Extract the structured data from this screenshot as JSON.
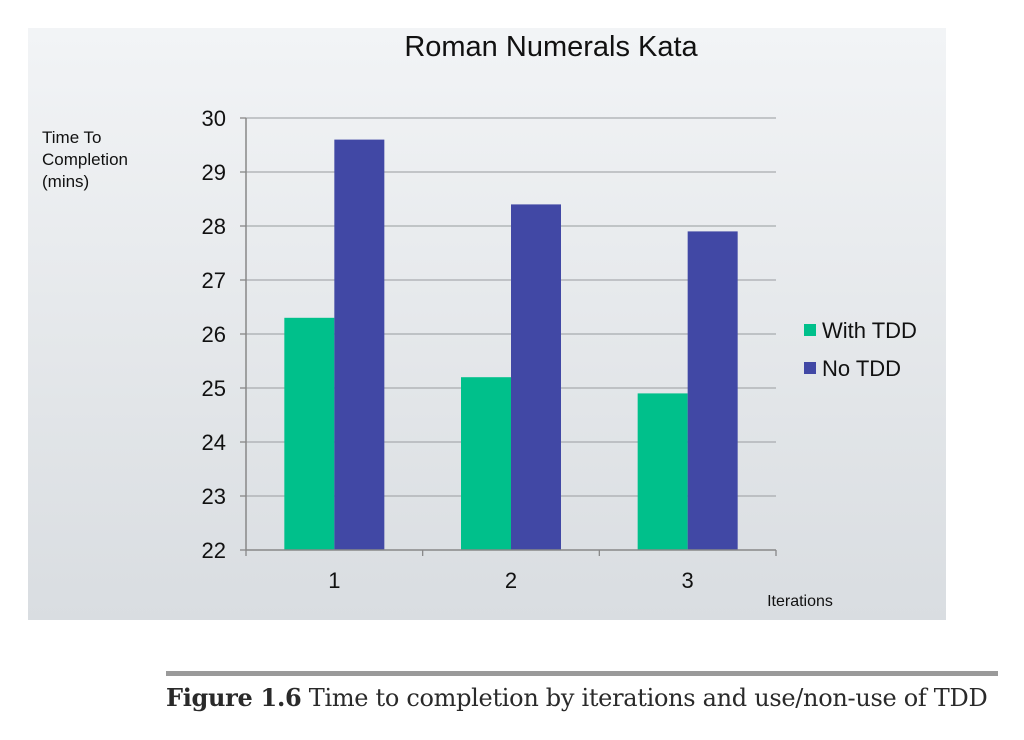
{
  "chart_data": {
    "type": "bar",
    "title": "Roman Numerals Kata",
    "ylabel_lines": [
      "Time To",
      "Completion",
      "(mins)"
    ],
    "xlabel": "Iterations",
    "categories": [
      "1",
      "2",
      "3"
    ],
    "ylim": [
      22,
      30
    ],
    "yticks": [
      22,
      23,
      24,
      25,
      26,
      27,
      28,
      29,
      30
    ],
    "grid": true,
    "legend_position": "right",
    "series": [
      {
        "name": "With TDD",
        "color": "#00c08b",
        "values": [
          26.3,
          25.2,
          24.9
        ]
      },
      {
        "name": "No TDD",
        "color": "#4148a5",
        "values": [
          29.6,
          28.4,
          27.9
        ]
      }
    ]
  },
  "caption": {
    "label": "Figure 1.6",
    "text": "Time to completion by iterations and use/non-use of TDD"
  }
}
